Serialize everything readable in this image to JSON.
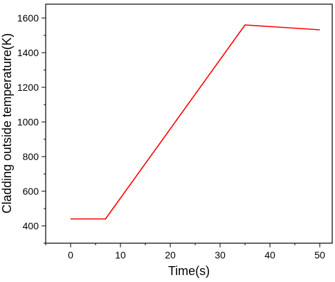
{
  "chart_data": {
    "type": "line",
    "title": "",
    "xlabel": "Time(s)",
    "ylabel": "Cladding outside temperature(K)",
    "xlim": [
      -5,
      52.5
    ],
    "ylim": [
      300,
      1680
    ],
    "xticks": [
      0,
      10,
      20,
      30,
      40,
      50
    ],
    "yticks": [
      400,
      600,
      800,
      1000,
      1200,
      1400,
      1600
    ],
    "grid": false,
    "legend": "none",
    "series": [
      {
        "color": "#ff0000",
        "x": [
          0,
          7,
          35,
          50
        ],
        "y": [
          440,
          440,
          1560,
          1532
        ]
      }
    ]
  }
}
